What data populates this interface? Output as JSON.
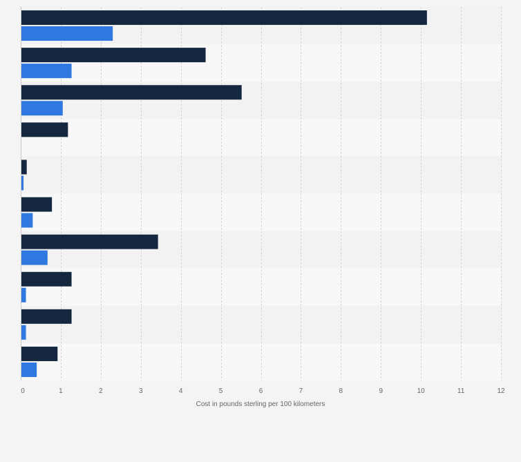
{
  "chart_data": {
    "type": "bar",
    "orientation": "horizontal",
    "xlabel": "Cost in pounds sterling per 100 kilometers",
    "ylabel": "",
    "xlim": [
      0,
      12
    ],
    "x_ticks": [
      0,
      1,
      2,
      3,
      4,
      5,
      6,
      7,
      8,
      9,
      10,
      11,
      12
    ],
    "grid": true,
    "legend": "none",
    "categories": [
      "",
      "",
      "",
      "",
      "",
      "",
      "",
      "",
      "",
      ""
    ],
    "series": [
      {
        "color": "#14273f",
        "values": [
          10.15,
          4.62,
          5.52,
          1.18,
          0.15,
          0.78,
          3.43,
          1.27,
          1.27,
          0.92
        ]
      },
      {
        "color": "#2e78e0",
        "values": [
          2.3,
          1.27,
          1.05,
          0,
          0.07,
          0.3,
          0.67,
          0.13,
          0.13,
          0.4
        ]
      }
    ],
    "band_colors": [
      "#f2f2f2",
      "#f8f8f8"
    ]
  }
}
